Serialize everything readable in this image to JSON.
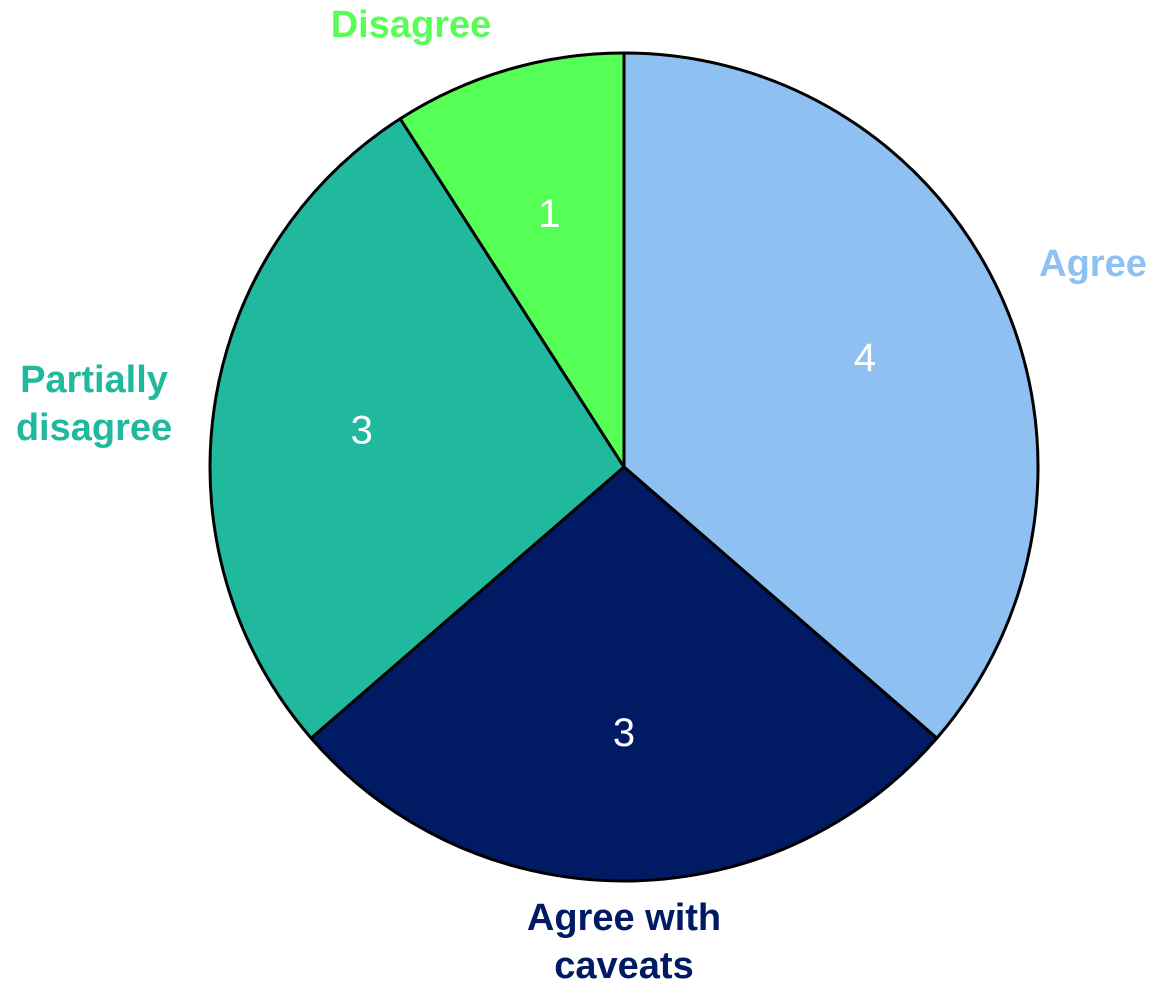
{
  "chart_data": {
    "type": "pie",
    "start": "12 o'clock",
    "direction": "clockwise",
    "slices": [
      {
        "label": "Agree",
        "label_lines": [
          "Agree"
        ],
        "value": 4,
        "value_label": "4",
        "color": "#8EC1F2"
      },
      {
        "label": "Agree with caveats",
        "label_lines": [
          "Agree with",
          "caveats"
        ],
        "value": 3,
        "value_label": "3",
        "color": "#001A63"
      },
      {
        "label": "Partially disagree",
        "label_lines": [
          "Partially",
          "disagree"
        ],
        "value": 3,
        "value_label": "3",
        "color": "#21B99D"
      },
      {
        "label": "Disagree",
        "label_lines": [
          "Disagree"
        ],
        "value": 1,
        "value_label": "1",
        "color": "#55FF55"
      }
    ]
  }
}
